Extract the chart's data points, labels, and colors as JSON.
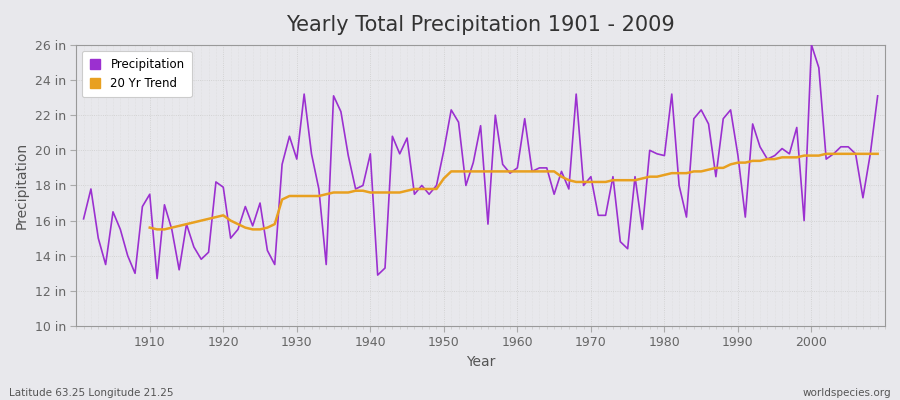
{
  "title": "Yearly Total Precipitation 1901 - 2009",
  "xlabel": "Year",
  "ylabel": "Precipitation",
  "lat_lon_label": "Latitude 63.25 Longitude 21.25",
  "watermark": "worldspecies.org",
  "years": [
    1901,
    1902,
    1903,
    1904,
    1905,
    1906,
    1907,
    1908,
    1909,
    1910,
    1911,
    1912,
    1913,
    1914,
    1915,
    1916,
    1917,
    1918,
    1919,
    1920,
    1921,
    1922,
    1923,
    1924,
    1925,
    1926,
    1927,
    1928,
    1929,
    1930,
    1931,
    1932,
    1933,
    1934,
    1935,
    1936,
    1937,
    1938,
    1939,
    1940,
    1941,
    1942,
    1943,
    1944,
    1945,
    1946,
    1947,
    1948,
    1949,
    1950,
    1951,
    1952,
    1953,
    1954,
    1955,
    1956,
    1957,
    1958,
    1959,
    1960,
    1961,
    1962,
    1963,
    1964,
    1965,
    1966,
    1967,
    1968,
    1969,
    1970,
    1971,
    1972,
    1973,
    1974,
    1975,
    1976,
    1977,
    1978,
    1979,
    1980,
    1981,
    1982,
    1983,
    1984,
    1985,
    1986,
    1987,
    1988,
    1989,
    1990,
    1991,
    1992,
    1993,
    1994,
    1995,
    1996,
    1997,
    1998,
    1999,
    2000,
    2001,
    2002,
    2003,
    2004,
    2005,
    2006,
    2007,
    2008,
    2009
  ],
  "precip_in": [
    16.1,
    17.8,
    15.0,
    13.5,
    16.5,
    15.5,
    14.0,
    13.0,
    16.8,
    17.5,
    12.7,
    16.9,
    15.5,
    13.2,
    15.8,
    14.5,
    13.8,
    14.2,
    18.2,
    17.9,
    15.0,
    15.5,
    16.8,
    15.7,
    17.0,
    14.3,
    13.5,
    19.2,
    20.8,
    19.5,
    23.2,
    19.8,
    17.8,
    13.5,
    23.1,
    22.2,
    19.7,
    17.8,
    18.0,
    19.8,
    12.9,
    13.3,
    20.8,
    19.8,
    20.7,
    17.5,
    18.0,
    17.5,
    18.0,
    20.0,
    22.3,
    21.6,
    18.0,
    19.3,
    21.4,
    15.8,
    22.0,
    19.2,
    18.7,
    19.0,
    21.8,
    18.8,
    19.0,
    19.0,
    17.5,
    18.8,
    17.8,
    23.2,
    18.0,
    18.5,
    16.3,
    16.3,
    18.5,
    14.8,
    14.4,
    18.5,
    15.5,
    20.0,
    19.8,
    19.7,
    23.2,
    18.0,
    16.2,
    21.8,
    22.3,
    21.5,
    18.5,
    21.8,
    22.3,
    19.7,
    16.2,
    21.5,
    20.2,
    19.5,
    19.7,
    20.1,
    19.8,
    21.3,
    16.0,
    26.0,
    24.7,
    19.5,
    19.8,
    20.2,
    20.2,
    19.8,
    17.3,
    19.8,
    23.1
  ],
  "trend_years": [
    1910,
    1911,
    1912,
    1913,
    1914,
    1915,
    1916,
    1917,
    1918,
    1919,
    1920,
    1921,
    1922,
    1923,
    1924,
    1925,
    1926,
    1927,
    1928,
    1929,
    1930,
    1931,
    1932,
    1933,
    1934,
    1935,
    1936,
    1937,
    1938,
    1939,
    1940,
    1941,
    1942,
    1943,
    1944,
    1945,
    1946,
    1947,
    1948,
    1949,
    1950,
    1951,
    1952,
    1953,
    1954,
    1955,
    1956,
    1957,
    1958,
    1959,
    1960,
    1961,
    1962,
    1963,
    1964,
    1965,
    1966,
    1967,
    1968,
    1969,
    1970,
    1971,
    1972,
    1973,
    1974,
    1975,
    1976,
    1977,
    1978,
    1979,
    1980,
    1981,
    1982,
    1983,
    1984,
    1985,
    1986,
    1987,
    1988,
    1989,
    1990,
    1991,
    1992,
    1993,
    1994,
    1995,
    1996,
    1997,
    1998,
    1999,
    2000,
    2001,
    2002,
    2003,
    2004,
    2005,
    2006,
    2007,
    2008,
    2009
  ],
  "trend_in": [
    15.6,
    15.5,
    15.5,
    15.6,
    15.7,
    15.8,
    15.9,
    16.0,
    16.1,
    16.2,
    16.3,
    16.0,
    15.8,
    15.6,
    15.5,
    15.5,
    15.6,
    15.8,
    17.2,
    17.4,
    17.4,
    17.4,
    17.4,
    17.4,
    17.5,
    17.6,
    17.6,
    17.6,
    17.7,
    17.7,
    17.6,
    17.6,
    17.6,
    17.6,
    17.6,
    17.7,
    17.8,
    17.8,
    17.8,
    17.8,
    18.4,
    18.8,
    18.8,
    18.8,
    18.8,
    18.8,
    18.8,
    18.8,
    18.8,
    18.8,
    18.8,
    18.8,
    18.8,
    18.8,
    18.8,
    18.8,
    18.5,
    18.3,
    18.2,
    18.2,
    18.2,
    18.2,
    18.2,
    18.3,
    18.3,
    18.3,
    18.3,
    18.4,
    18.5,
    18.5,
    18.6,
    18.7,
    18.7,
    18.7,
    18.8,
    18.8,
    18.9,
    19.0,
    19.0,
    19.2,
    19.3,
    19.3,
    19.4,
    19.4,
    19.5,
    19.5,
    19.6,
    19.6,
    19.6,
    19.7,
    19.7,
    19.7,
    19.8,
    19.8,
    19.8,
    19.8,
    19.8,
    19.8,
    19.8,
    19.8
  ],
  "precip_color": "#9b30d0",
  "trend_color": "#e8a020",
  "fig_bg_color": "#e8e8ec",
  "plot_bg_color": "#e8e8ec",
  "ylim_min": 10,
  "ylim_max": 26,
  "ytick_labels": [
    "10 in",
    "12 in",
    "14 in",
    "16 in",
    "18 in",
    "20 in",
    "22 in",
    "24 in",
    "26 in"
  ],
  "ytick_values": [
    10,
    12,
    14,
    16,
    18,
    20,
    22,
    24,
    26
  ],
  "xtick_values": [
    1910,
    1920,
    1930,
    1940,
    1950,
    1960,
    1970,
    1980,
    1990,
    2000
  ],
  "title_fontsize": 15,
  "axis_label_fontsize": 10,
  "tick_fontsize": 9,
  "grid_color": "#cccccc",
  "minor_grid_color": "#d8d8d8",
  "text_color": "#555555",
  "tick_color": "#666666"
}
